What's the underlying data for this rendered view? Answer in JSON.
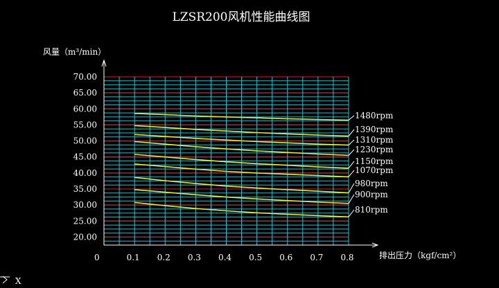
{
  "colors": {
    "background": "#000000",
    "text": "#ffffff",
    "axis": "#ffffff",
    "grid_major": "#cc2a2a",
    "grid_minor": "#2fbfcf",
    "grid_vertical": "#2fbfcf",
    "curve": "#e8e84a",
    "leader": "#ffffff"
  },
  "chart_data": {
    "type": "line",
    "title": "LZSR200风机性能曲线图",
    "ylabel": "风量（m³/min）",
    "xlabel": "排出压力（kgf/cm²）",
    "origin_label": "0",
    "xlim": [
      0,
      0.8
    ],
    "ylim": [
      17.5,
      70
    ],
    "x_ticks": [
      "0.1",
      "0.2",
      "0.3",
      "0.4",
      "0.5",
      "0.6",
      "0.7",
      "0.8"
    ],
    "x_tick_values": [
      0.1,
      0.2,
      0.3,
      0.4,
      0.5,
      0.6,
      0.7,
      0.8
    ],
    "y_ticks": [
      "20.00",
      "25.00",
      "30.00",
      "35.00",
      "40.00",
      "45.00",
      "50.00",
      "55.00",
      "60.00",
      "65.00",
      "70.00"
    ],
    "y_tick_values": [
      20,
      25,
      30,
      35,
      40,
      45,
      50,
      55,
      60,
      65,
      70
    ],
    "x": [
      0.1,
      0.2,
      0.3,
      0.4,
      0.5,
      0.6,
      0.7,
      0.8
    ],
    "series": [
      {
        "name": "1480rpm",
        "values": [
          58.6,
          58.2,
          57.8,
          57.5,
          57.2,
          56.9,
          56.7,
          56.5
        ]
      },
      {
        "name": "1390rpm",
        "values": [
          54.8,
          54.2,
          53.6,
          53.1,
          52.6,
          52.2,
          51.8,
          51.5
        ]
      },
      {
        "name": "1310rpm",
        "values": [
          52.0,
          51.4,
          50.8,
          50.3,
          49.8,
          49.4,
          49.0,
          48.7
        ]
      },
      {
        "name": "1230rpm",
        "values": [
          49.8,
          49.0,
          48.2,
          47.5,
          46.9,
          46.4,
          45.9,
          45.5
        ]
      },
      {
        "name": "1150rpm",
        "values": [
          45.8,
          45.0,
          44.2,
          43.5,
          42.9,
          42.4,
          41.9,
          41.5
        ]
      },
      {
        "name": "1070rpm",
        "values": [
          42.8,
          42.0,
          41.2,
          40.5,
          40.0,
          39.6,
          39.2,
          38.8
        ]
      },
      {
        "name": "980rpm",
        "values": [
          38.6,
          37.6,
          36.7,
          35.9,
          35.3,
          34.8,
          34.3,
          33.8
        ]
      },
      {
        "name": "900rpm",
        "values": [
          34.8,
          34.0,
          33.2,
          32.5,
          31.9,
          31.4,
          30.9,
          30.5
        ]
      },
      {
        "name": "810rpm",
        "values": [
          30.8,
          29.8,
          28.9,
          28.2,
          27.6,
          27.1,
          26.7,
          26.3
        ]
      }
    ],
    "grid": true,
    "legend": "right, at end of each curve"
  },
  "status": {
    "cursor_label": "X"
  }
}
